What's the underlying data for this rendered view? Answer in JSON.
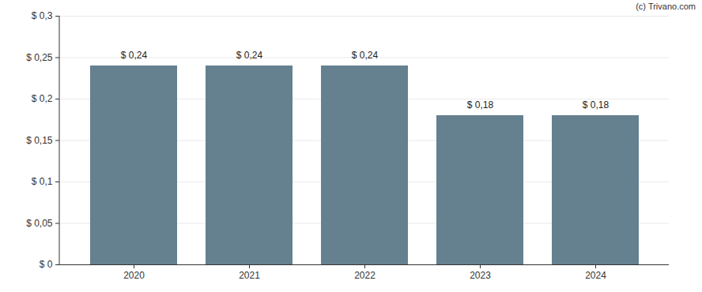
{
  "chart_data": {
    "type": "bar",
    "caption": "(c) Trivano.com",
    "categories": [
      "2020",
      "2021",
      "2022",
      "2023",
      "2024"
    ],
    "values": [
      0.24,
      0.24,
      0.24,
      0.18,
      0.18
    ],
    "value_labels": [
      "$ 0,24",
      "$ 0,24",
      "$ 0,24",
      "$ 0,18",
      "$ 0,18"
    ],
    "data_labels": true,
    "color": "#65808f",
    "ylim": [
      0,
      0.3
    ],
    "yticks": [
      {
        "value": 0,
        "label": "$ 0"
      },
      {
        "value": 0.05,
        "label": "$ 0,05"
      },
      {
        "value": 0.1,
        "label": "$ 0,1"
      },
      {
        "value": 0.15,
        "label": "$ 0,15"
      },
      {
        "value": 0.2,
        "label": "$ 0,2"
      },
      {
        "value": 0.25,
        "label": "$ 0,25"
      },
      {
        "value": 0.3,
        "label": "$ 0,3"
      }
    ],
    "grid": true
  }
}
